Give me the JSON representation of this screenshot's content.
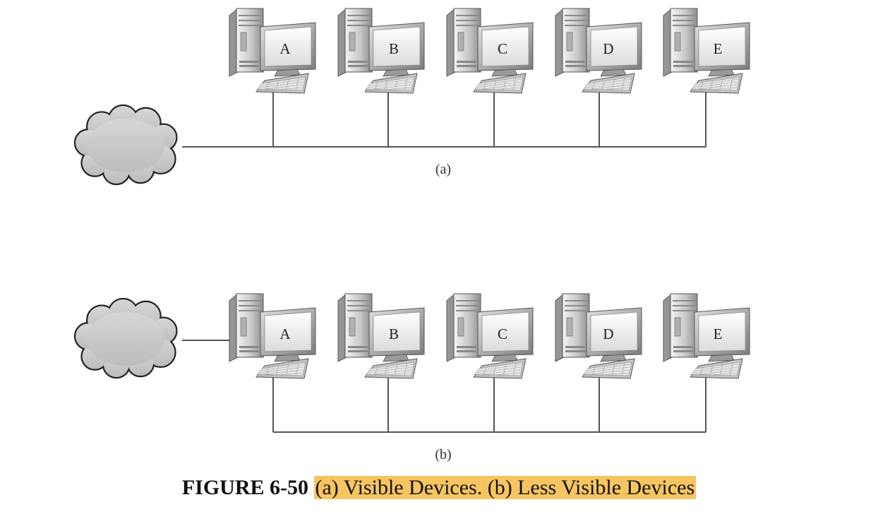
{
  "figure": {
    "panels": [
      {
        "id": "a",
        "label": "(a)",
        "devices": [
          "A",
          "B",
          "C",
          "D",
          "E"
        ]
      },
      {
        "id": "b",
        "label": "(b)",
        "devices": [
          "A",
          "B",
          "C",
          "D",
          "E"
        ]
      }
    ],
    "caption": {
      "number": "FIGURE 6-50",
      "text": "(a) Visible Devices. (b) Less Visible Devices",
      "highlight_color": "#f7c55f"
    }
  }
}
